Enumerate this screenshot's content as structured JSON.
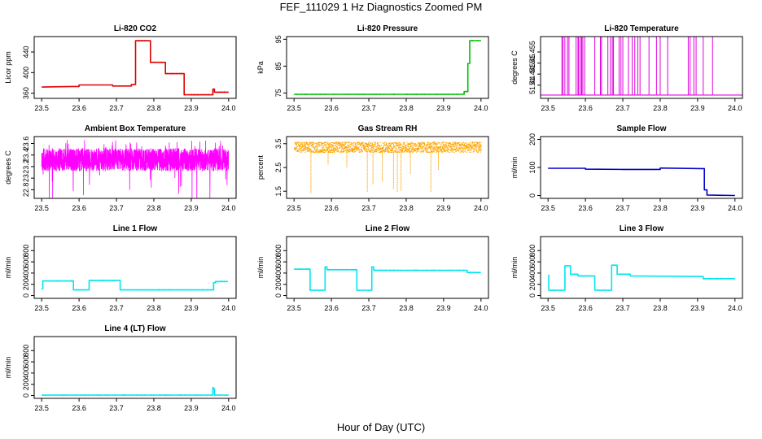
{
  "page": {
    "title": "FEF_111029  1 Hz Diagnostics Zoomed PM",
    "xlabel": "Hour of Day (UTC)"
  },
  "chart_data": [
    {
      "type": "line",
      "title": "Li-820 CO2",
      "ylabel": "Licor ppm",
      "color": "#e00000",
      "xlim": [
        23.5,
        24.0
      ],
      "ylim": [
        350,
        470
      ],
      "xticks": [
        "23.5",
        "23.6",
        "23.7",
        "23.8",
        "23.9",
        "24.0"
      ],
      "yticks": [
        360,
        400,
        440
      ],
      "x": [
        23.5,
        23.58,
        23.6,
        23.69,
        23.74,
        23.751,
        23.79,
        23.791,
        23.83,
        23.831,
        23.88,
        23.881,
        23.95,
        23.958,
        23.962,
        24.0
      ],
      "y": [
        372,
        373,
        376,
        374,
        377,
        462,
        462,
        420,
        420,
        398,
        398,
        357,
        357,
        368,
        362,
        362
      ]
    },
    {
      "type": "line",
      "title": "Li-820 Pressure",
      "ylabel": "kPa",
      "color": "#00c000",
      "xlim": [
        23.5,
        24.0
      ],
      "ylim": [
        73,
        96
      ],
      "xticks": [
        "23.5",
        "23.6",
        "23.7",
        "23.8",
        "23.9",
        "24.0"
      ],
      "yticks": [
        75,
        85,
        95
      ],
      "x": [
        23.5,
        23.94,
        23.955,
        23.965,
        23.97,
        24.0
      ],
      "y": [
        74.5,
        74.5,
        75.5,
        86,
        94.5,
        94.5
      ]
    },
    {
      "type": "spikes",
      "title": "Li-820 Temperature",
      "ylabel": "degrees C",
      "color": "#e000e0",
      "xlim": [
        23.5,
        24.0
      ],
      "ylim": [
        51.434,
        51.462
      ],
      "xticks": [
        "23.5",
        "23.6",
        "23.7",
        "23.8",
        "23.9",
        "24.0"
      ],
      "yticks": [
        51.44,
        51.445,
        51.45,
        51.455
      ],
      "baseline": 51.4355,
      "peak": 51.462,
      "x": [
        23.537,
        23.54,
        23.545,
        23.552,
        23.556,
        23.575,
        23.58,
        23.582,
        23.587,
        23.59,
        23.593,
        23.598,
        23.625,
        23.64,
        23.643,
        23.66,
        23.667,
        23.672,
        23.675,
        23.69,
        23.695,
        23.7,
        23.715,
        23.725,
        23.732,
        23.74,
        23.746,
        23.77,
        23.79,
        23.8,
        23.82,
        23.875,
        23.88,
        23.89,
        23.896,
        23.915,
        23.94
      ]
    },
    {
      "type": "band",
      "title": "Ambient Box Temperature",
      "ylabel": "degrees C",
      "color": "#ff00ff",
      "xlim": [
        23.5,
        24.0
      ],
      "ylim": [
        22.65,
        23.72
      ],
      "xticks": [
        "23.5",
        "23.6",
        "23.7",
        "23.8",
        "23.9",
        "24.0"
      ],
      "yticks": [
        22.8,
        23.0,
        23.2,
        23.4,
        23.6
      ],
      "center": 23.32,
      "halfwidth": 0.2,
      "points": 1800
    },
    {
      "type": "scatter-band",
      "title": "Gas Stream RH",
      "ylabel": "percent",
      "color": "#ffa500",
      "xlim": [
        23.5,
        24.0
      ],
      "ylim": [
        1.2,
        3.8
      ],
      "xticks": [
        "23.5",
        "23.6",
        "23.7",
        "23.8",
        "23.9",
        "24.0"
      ],
      "yticks": [
        1.5,
        2.5,
        3.5
      ],
      "center": 3.35,
      "halfwidth": 0.22,
      "points": 1800,
      "dips": [
        [
          23.544,
          1.38
        ],
        [
          23.59,
          2.6
        ],
        [
          23.64,
          2.5
        ],
        [
          23.695,
          1.45
        ],
        [
          23.71,
          1.8
        ],
        [
          23.735,
          1.9
        ],
        [
          23.765,
          1.55
        ],
        [
          23.775,
          1.45
        ],
        [
          23.785,
          1.5
        ],
        [
          23.81,
          2.2
        ],
        [
          23.865,
          1.45
        ],
        [
          23.885,
          2.4
        ]
      ]
    },
    {
      "type": "line",
      "title": "Sample Flow",
      "ylabel": "ml/min",
      "color": "#0000c8",
      "xlim": [
        23.5,
        24.0
      ],
      "ylim": [
        -10,
        210
      ],
      "xticks": [
        "23.5",
        "23.6",
        "23.7",
        "23.8",
        "23.9",
        "24.0"
      ],
      "yticks": [
        0,
        100,
        200
      ],
      "x": [
        23.5,
        23.6,
        23.7,
        23.8,
        23.91,
        23.918,
        23.925,
        24.0
      ],
      "y": [
        97,
        94,
        93,
        98,
        96,
        20,
        2,
        0
      ]
    },
    {
      "type": "line",
      "title": "Line 1 Flow",
      "ylabel": "ml/min",
      "color": "#00e5ee",
      "xlim": [
        23.5,
        24.0
      ],
      "ylim": [
        -50,
        1050
      ],
      "xticks": [
        "23.5",
        "23.6",
        "23.7",
        "23.8",
        "23.9",
        "24.0"
      ],
      "yticks": [
        0,
        200,
        400,
        600,
        800
      ],
      "x": [
        23.5,
        23.503,
        23.583,
        23.585,
        23.625,
        23.627,
        23.708,
        23.71,
        23.955,
        23.96,
        23.965,
        23.998
      ],
      "y": [
        120,
        260,
        260,
        100,
        100,
        270,
        270,
        100,
        100,
        230,
        250,
        250
      ]
    },
    {
      "type": "line",
      "title": "Line 2 Flow",
      "ylabel": "ml/min",
      "color": "#00e5ee",
      "xlim": [
        23.5,
        24.0
      ],
      "ylim": [
        -50,
        1050
      ],
      "xticks": [
        "23.5",
        "23.6",
        "23.7",
        "23.8",
        "23.9",
        "24.0"
      ],
      "yticks": [
        0,
        200,
        400,
        600,
        800
      ],
      "x": [
        23.5,
        23.54,
        23.543,
        23.58,
        23.583,
        23.588,
        23.665,
        23.668,
        23.705,
        23.708,
        23.713,
        23.96,
        23.963,
        24.0
      ],
      "y": [
        470,
        470,
        95,
        95,
        510,
        460,
        460,
        95,
        95,
        510,
        450,
        450,
        410,
        410
      ]
    },
    {
      "type": "line",
      "title": "Line 3 Flow",
      "ylabel": "ml/min",
      "color": "#00e5ee",
      "xlim": [
        23.5,
        24.0
      ],
      "ylim": [
        -50,
        1050
      ],
      "xticks": [
        "23.5",
        "23.6",
        "23.7",
        "23.8",
        "23.9",
        "24.0"
      ],
      "yticks": [
        0,
        200,
        400,
        600,
        800
      ],
      "x": [
        23.5,
        23.502,
        23.505,
        23.54,
        23.545,
        23.56,
        23.58,
        23.62,
        23.625,
        23.665,
        23.67,
        23.685,
        23.72,
        23.91,
        23.915,
        24.0
      ],
      "y": [
        360,
        95,
        95,
        95,
        530,
        380,
        350,
        350,
        95,
        95,
        540,
        380,
        350,
        340,
        300,
        300
      ]
    },
    {
      "type": "line",
      "title": "Line 4 (LT) Flow",
      "ylabel": "ml/min",
      "color": "#00e5ee",
      "xlim": [
        23.5,
        24.0
      ],
      "ylim": [
        -50,
        1050
      ],
      "xticks": [
        "23.5",
        "23.6",
        "23.7",
        "23.8",
        "23.9",
        "24.0"
      ],
      "yticks": [
        0,
        200,
        400,
        600,
        800
      ],
      "x": [
        23.5,
        23.956,
        23.958,
        23.96,
        23.962,
        24.0
      ],
      "y": [
        8,
        8,
        140,
        120,
        8,
        8
      ]
    }
  ]
}
